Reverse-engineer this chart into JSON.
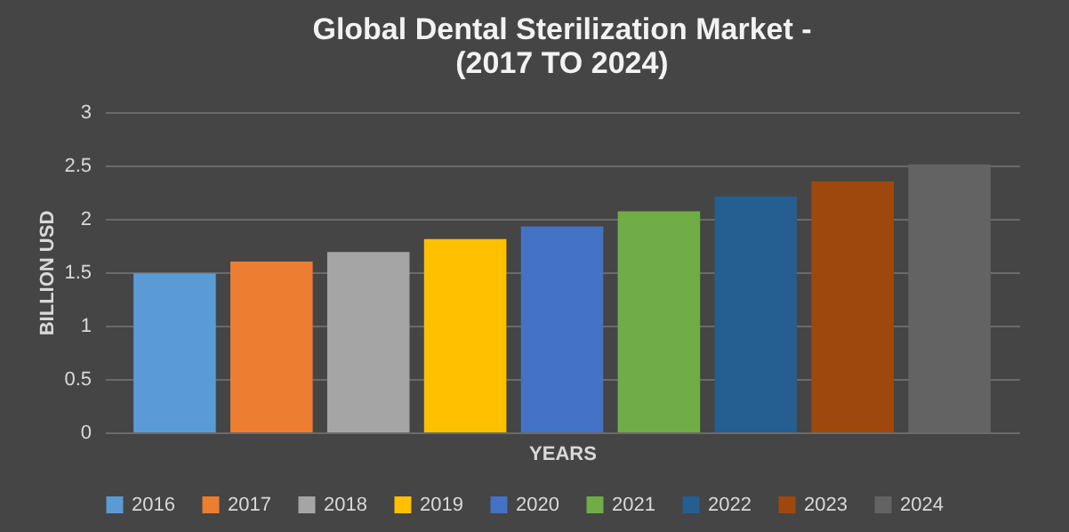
{
  "chart_data": {
    "type": "bar",
    "title": [
      "Global Dental Sterilization Market -",
      "(2017 TO 2024)"
    ],
    "xlabel": "YEARS",
    "ylabel": "BILLION USD",
    "categories": [
      null
    ],
    "series": [
      {
        "name": "2016",
        "color": "#5b9bd5",
        "values": [
          1.49
        ]
      },
      {
        "name": "2017",
        "color": "#ed7d31",
        "values": [
          1.6
        ]
      },
      {
        "name": "2018",
        "color": "#a5a5a5",
        "values": [
          1.69
        ]
      },
      {
        "name": "2019",
        "color": "#ffc000",
        "values": [
          1.81
        ]
      },
      {
        "name": "2020",
        "color": "#4472c4",
        "values": [
          1.93
        ]
      },
      {
        "name": "2021",
        "color": "#70ad47",
        "values": [
          2.07
        ]
      },
      {
        "name": "2022",
        "color": "#255e91",
        "values": [
          2.21
        ]
      },
      {
        "name": "2023",
        "color": "#9e480e",
        "values": [
          2.35
        ]
      },
      {
        "name": "2024",
        "color": "#636363",
        "values": [
          2.51
        ]
      }
    ],
    "ylim": [
      0,
      3
    ],
    "yticks": [
      0,
      0.5,
      1,
      1.5,
      2,
      2.5,
      3
    ],
    "grid": "y",
    "legend": "bottom"
  }
}
